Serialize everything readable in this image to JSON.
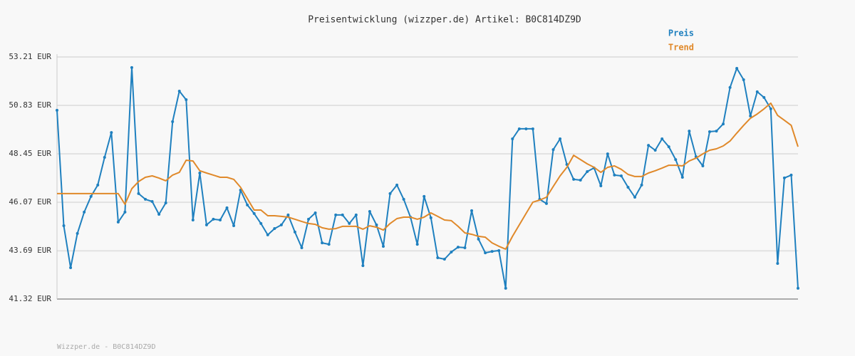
{
  "chart_data": {
    "type": "line",
    "title": "Preisentwicklung (wizzper.de) Artikel: B0C814DZ9D",
    "source": "Wizzper.de - B0C814DZ9D",
    "categories": [
      null,
      null,
      null,
      null,
      null,
      null,
      null,
      null,
      null,
      null,
      null,
      null,
      null,
      null,
      null,
      null,
      null,
      null,
      null,
      null,
      null,
      null,
      null,
      null,
      null,
      null,
      null,
      null,
      null,
      null,
      null,
      null,
      null,
      null,
      null,
      null,
      null,
      null,
      null,
      null,
      null,
      null,
      null,
      null,
      null,
      null,
      null,
      null,
      null,
      null,
      null,
      null,
      null,
      null,
      null,
      null,
      null,
      null,
      null,
      null,
      null,
      null,
      null,
      null,
      null,
      null,
      null,
      null,
      null,
      null,
      null,
      null,
      null,
      null,
      null,
      null,
      null,
      null,
      null,
      null,
      null,
      null,
      null,
      null,
      null,
      null,
      null,
      null,
      null,
      null,
      null,
      null,
      null,
      null,
      null,
      null,
      null,
      null,
      null,
      null,
      null,
      null,
      null,
      null,
      null,
      null,
      null,
      null,
      null,
      null
    ],
    "series": [
      {
        "name": "Preis",
        "color": "#1f80bf",
        "markers": true,
        "values": [
          50.59,
          44.92,
          42.86,
          44.54,
          45.59,
          46.36,
          46.92,
          48.28,
          49.5,
          45.1,
          45.59,
          52.69,
          46.5,
          46.22,
          46.11,
          45.48,
          46.04,
          50.03,
          51.53,
          51.11,
          45.2,
          47.51,
          44.96,
          45.24,
          45.2,
          45.8,
          44.92,
          46.67,
          45.94,
          45.52,
          45.03,
          44.47,
          44.78,
          44.96,
          45.45,
          44.61,
          43.84,
          45.24,
          45.55,
          44.08,
          44.01,
          45.45,
          45.45,
          45.03,
          45.45,
          42.96,
          45.62,
          44.96,
          43.91,
          46.5,
          46.92,
          46.22,
          45.34,
          44.01,
          46.36,
          45.31,
          43.35,
          43.28,
          43.63,
          43.87,
          43.84,
          45.66,
          44.26,
          43.59,
          43.66,
          43.7,
          41.85,
          49.19,
          49.68,
          49.68,
          49.68,
          46.22,
          46.01,
          48.66,
          49.19,
          47.93,
          47.2,
          47.16,
          47.58,
          47.76,
          46.88,
          48.45,
          47.41,
          47.37,
          46.81,
          46.32,
          46.92,
          48.87,
          48.63,
          49.19,
          48.8,
          48.17,
          47.3,
          49.57,
          48.31,
          47.86,
          49.54,
          49.57,
          49.92,
          51.71,
          52.65,
          52.09,
          50.31,
          51.5,
          51.22,
          50.66,
          43.07,
          47.27,
          47.41,
          41.85
        ]
      },
      {
        "name": "Trend",
        "color": "#e0892a",
        "markers": false,
        "values": [
          46.5,
          46.5,
          46.5,
          46.5,
          46.5,
          46.5,
          46.5,
          46.5,
          46.5,
          46.5,
          45.97,
          46.74,
          47.09,
          47.3,
          47.37,
          47.26,
          47.13,
          47.41,
          47.54,
          48.14,
          48.1,
          47.62,
          47.51,
          47.41,
          47.3,
          47.3,
          47.2,
          46.81,
          46.25,
          45.69,
          45.69,
          45.41,
          45.41,
          45.38,
          45.34,
          45.24,
          45.13,
          45.03,
          44.99,
          44.82,
          44.75,
          44.78,
          44.89,
          44.89,
          44.89,
          44.75,
          44.92,
          44.85,
          44.71,
          45.03,
          45.27,
          45.34,
          45.34,
          45.24,
          45.34,
          45.55,
          45.38,
          45.2,
          45.17,
          44.89,
          44.57,
          44.5,
          44.4,
          44.36,
          44.08,
          43.91,
          43.77,
          44.4,
          44.96,
          45.52,
          46.08,
          46.18,
          46.32,
          46.85,
          47.37,
          47.79,
          48.38,
          48.17,
          47.96,
          47.79,
          47.54,
          47.79,
          47.86,
          47.69,
          47.44,
          47.34,
          47.34,
          47.51,
          47.62,
          47.75,
          47.89,
          47.89,
          47.86,
          48.1,
          48.24,
          48.45,
          48.63,
          48.7,
          48.84,
          49.08,
          49.47,
          49.85,
          50.2,
          50.41,
          50.66,
          50.94,
          50.34,
          50.1,
          49.85,
          48.8
        ]
      }
    ],
    "ylim": [
      41.32,
      53.21
    ],
    "yticks": [
      {
        "value": 41.32,
        "label": "41.32 EUR"
      },
      {
        "value": 43.69,
        "label": "43.69 EUR"
      },
      {
        "value": 46.07,
        "label": "46.07 EUR"
      },
      {
        "value": 48.45,
        "label": "48.45 EUR"
      },
      {
        "value": 50.83,
        "label": "50.83 EUR"
      },
      {
        "value": 53.21,
        "label": "53.21 EUR"
      }
    ],
    "grid": true,
    "legend": "top-right"
  }
}
